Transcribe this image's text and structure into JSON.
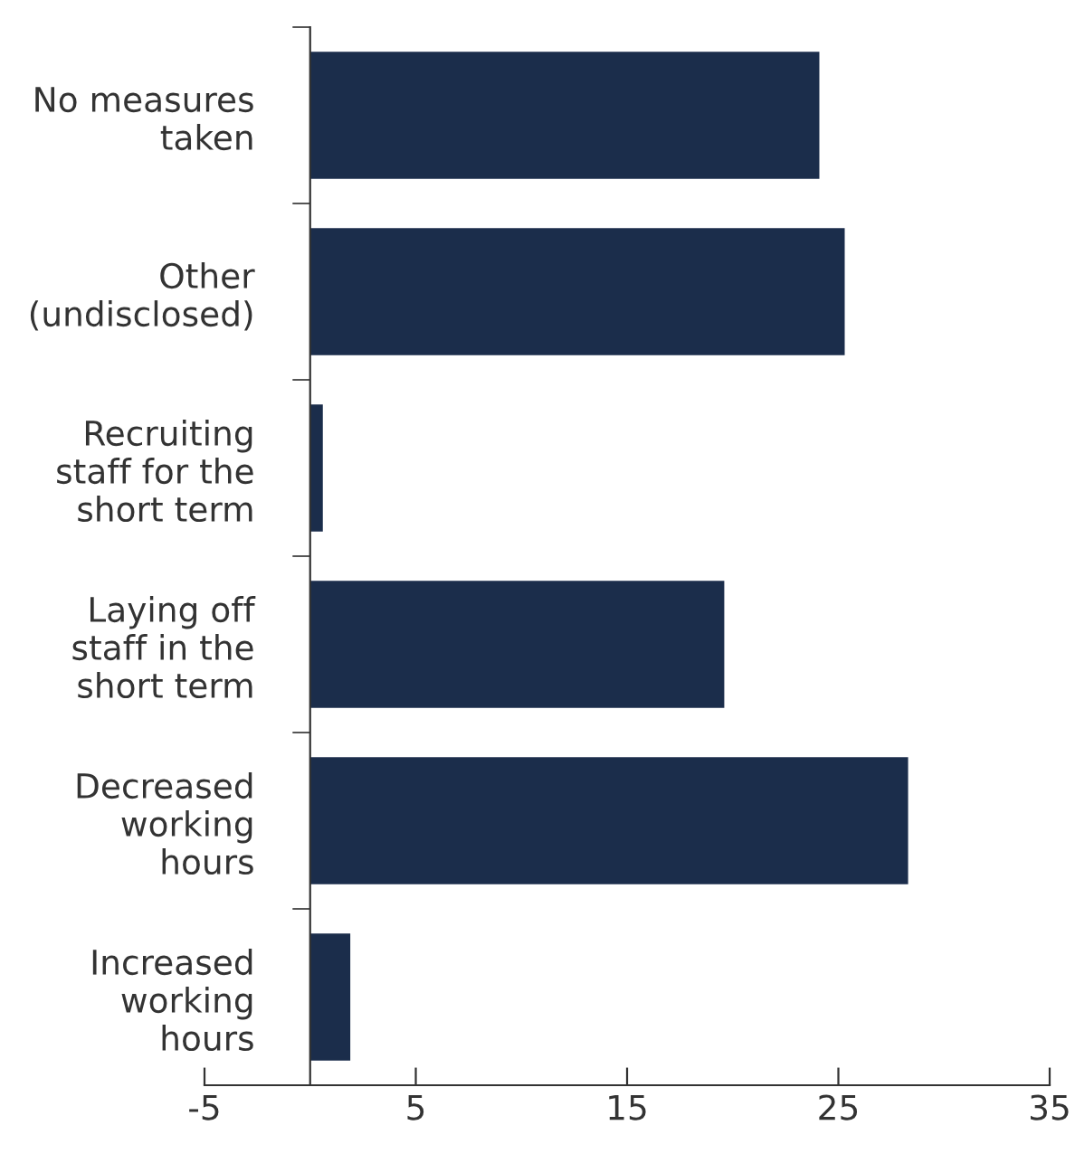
{
  "chart_data": {
    "type": "bar",
    "orientation": "horizontal",
    "categories": [
      "No measures\ntaken",
      "Other\n(undisclosed)",
      "Recruiting\nstaff for the\nshort term",
      "Laying off\nstaff in the\nshort term",
      "Decreased\nworking\nhours",
      "Increased\nworking\nhours"
    ],
    "values": [
      24.1,
      25.3,
      0.6,
      19.6,
      28.3,
      1.9
    ],
    "color": "#1b2d4b",
    "xlim": [
      -5,
      35
    ],
    "xticks": [
      -5,
      5,
      15,
      25,
      35
    ],
    "grid": false
  }
}
